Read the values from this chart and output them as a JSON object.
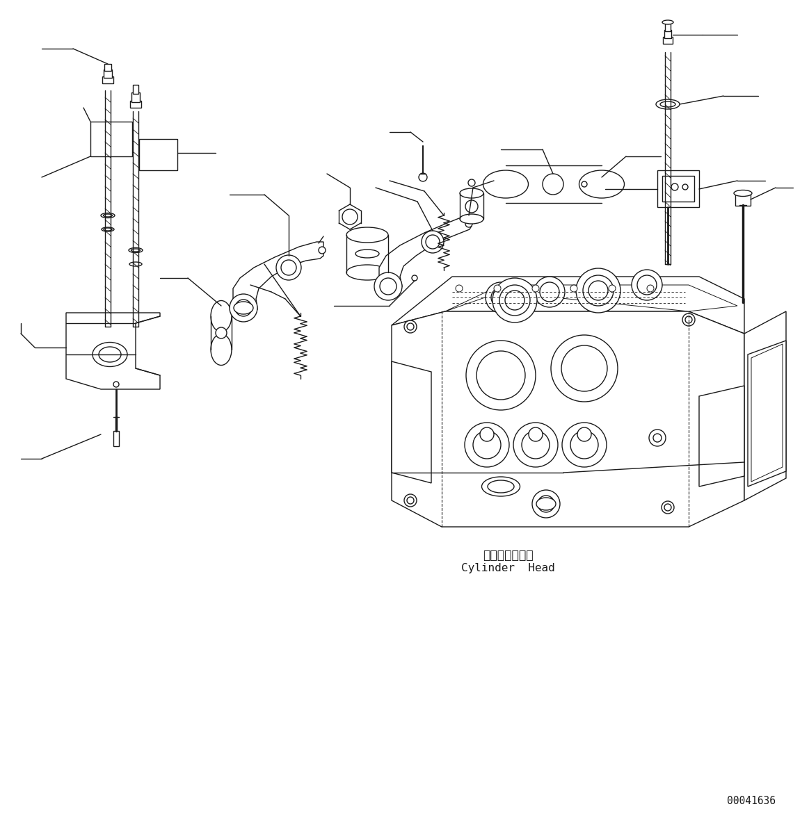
{
  "background_color": "#ffffff",
  "line_color": "#1a1a1a",
  "lw": 1.0,
  "label_japanese": "シリンダヘッド",
  "label_english": "Cylinder  Head",
  "part_number": "00041636",
  "fig_width": 11.63,
  "fig_height": 11.87,
  "dpi": 100
}
